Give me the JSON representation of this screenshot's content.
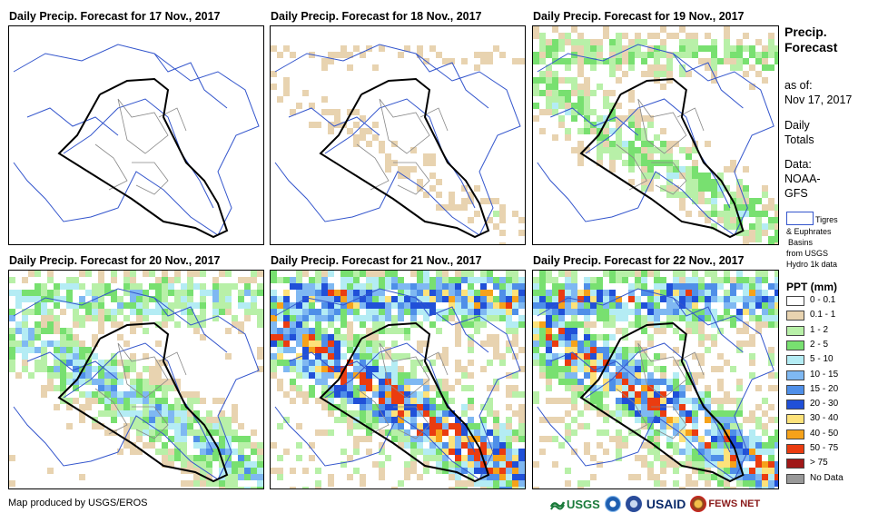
{
  "panels": [
    {
      "title": "Daily Precip. Forecast for 17 Nov., 2017",
      "intensity": 0.0
    },
    {
      "title": "Daily Precip. Forecast for 18 Nov., 2017",
      "intensity": 0.12
    },
    {
      "title": "Daily Precip. Forecast for 19 Nov., 2017",
      "intensity": 0.3
    },
    {
      "title": "Daily Precip. Forecast for 20 Nov., 2017",
      "intensity": 0.45
    },
    {
      "title": "Daily Precip. Forecast for 21 Nov., 2017",
      "intensity": 0.85
    },
    {
      "title": "Daily Precip. Forecast for 22 Nov., 2017",
      "intensity": 0.8
    }
  ],
  "side": {
    "title_line1": "Precip.",
    "title_line2": "Forecast",
    "asof_line1": "as of:",
    "asof_line2": "Nov 17, 2017",
    "totals_line1": "Daily",
    "totals_line2": "Totals",
    "data_line1": "Data:",
    "data_line2": "NOAA-",
    "data_line3": "GFS"
  },
  "basin_legend": {
    "line1": "Tigres",
    "line2": "& Euphrates",
    "line3": "Basins",
    "line4": "from USGS",
    "line5": "Hydro 1k data"
  },
  "ppt_legend": {
    "title": "PPT (mm)",
    "items": [
      {
        "label": "0 - 0.1",
        "color": "#ffffff"
      },
      {
        "label": "0.1 - 1",
        "color": "#e8d3b0"
      },
      {
        "label": "1 - 2",
        "color": "#b8f0a8"
      },
      {
        "label": "2 - 5",
        "color": "#78e070"
      },
      {
        "label": "5 - 10",
        "color": "#b4ecf4"
      },
      {
        "label": "10 - 15",
        "color": "#7fb8f2"
      },
      {
        "label": "15 - 20",
        "color": "#4f8fe8"
      },
      {
        "label": "20 - 30",
        "color": "#2050d8"
      },
      {
        "label": "30 - 40",
        "color": "#fde27a"
      },
      {
        "label": "40 - 50",
        "color": "#f6a21a"
      },
      {
        "label": "50 - 75",
        "color": "#ea3c10"
      },
      {
        "label": "> 75",
        "color": "#a01818"
      },
      {
        "label": "No Data",
        "color": "#999999"
      }
    ]
  },
  "footer": {
    "text": "Map produced by USGS/EROS"
  },
  "logos": {
    "usgs": "USGS",
    "usaid": "USAID",
    "fewsnet": "FEWS NET"
  }
}
